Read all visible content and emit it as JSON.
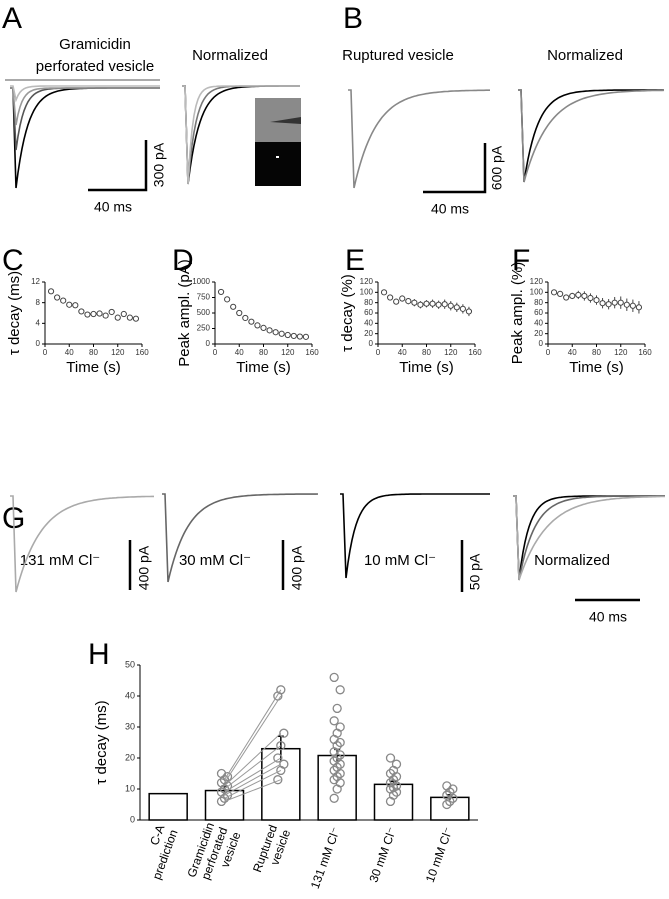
{
  "panels": {
    "A": {
      "letter": "A",
      "title": [
        "Gramicidin",
        "perforated vesicle"
      ],
      "normalized": "Normalized",
      "scale_y": "300 pA",
      "scale_x": "40 ms"
    },
    "B": {
      "letter": "B",
      "title": "Ruptured vesicle",
      "normalized": "Normalized",
      "scale_y": "600 pA",
      "scale_x": "40 ms"
    },
    "G": {
      "letter": "G",
      "titles": [
        "131 mM Cl⁻",
        "30 mM Cl⁻",
        "10 mM Cl⁻",
        "Normalized"
      ],
      "scale_y": [
        "400 pA",
        "400 pA",
        "50 pA"
      ],
      "scale_x": "40 ms"
    }
  },
  "chart_data": [
    {
      "type": "scatter",
      "panel": "C",
      "x_label": "Time (s)",
      "y_label": "τ decay (ms)",
      "x": [
        10,
        20,
        30,
        40,
        50,
        60,
        70,
        80,
        90,
        100,
        110,
        120,
        130,
        140,
        150
      ],
      "values": [
        10.2,
        9.0,
        8.4,
        7.6,
        7.5,
        6.3,
        5.7,
        5.8,
        5.9,
        5.5,
        6.2,
        5.1,
        5.8,
        5.1,
        4.9
      ],
      "xlim": [
        0,
        160
      ],
      "xticks": [
        0,
        40,
        80,
        120,
        160
      ],
      "ylim": [
        0,
        12
      ],
      "yticks": [
        0,
        4,
        8,
        12
      ]
    },
    {
      "type": "scatter",
      "panel": "D",
      "x_label": "Time (s)",
      "y_label": "Peak ampl. (pA)",
      "x": [
        10,
        20,
        30,
        40,
        50,
        60,
        70,
        80,
        90,
        100,
        110,
        120,
        130,
        140,
        150
      ],
      "values": [
        840,
        720,
        600,
        500,
        420,
        360,
        300,
        260,
        220,
        190,
        165,
        145,
        130,
        120,
        115
      ],
      "xlim": [
        0,
        160
      ],
      "xticks": [
        0,
        40,
        80,
        120,
        160
      ],
      "ylim": [
        0,
        1000
      ],
      "yticks": [
        0,
        250,
        500,
        750,
        1000
      ]
    },
    {
      "type": "scatter",
      "panel": "E",
      "x_label": "Time (s)",
      "y_label": "τ decay (%)",
      "x": [
        10,
        20,
        30,
        40,
        50,
        60,
        70,
        80,
        90,
        100,
        110,
        120,
        130,
        140,
        150
      ],
      "values": [
        100,
        90,
        82,
        88,
        83,
        80,
        76,
        78,
        78,
        76,
        77,
        74,
        71,
        68,
        63
      ],
      "errors": [
        2,
        4,
        5,
        6,
        6,
        7,
        7,
        7,
        8,
        8,
        9,
        9,
        9,
        9,
        9
      ],
      "xlim": [
        0,
        160
      ],
      "xticks": [
        0,
        40,
        80,
        120,
        160
      ],
      "ylim": [
        0,
        120
      ],
      "yticks": [
        0,
        20,
        40,
        60,
        80,
        100,
        120
      ]
    },
    {
      "type": "scatter",
      "panel": "F",
      "x_label": "Time (s)",
      "y_label": "Peak ampl. (%)",
      "x": [
        10,
        20,
        30,
        40,
        50,
        60,
        70,
        80,
        90,
        100,
        110,
        120,
        130,
        140,
        150
      ],
      "values": [
        100,
        97,
        90,
        93,
        95,
        93,
        89,
        85,
        79,
        77,
        80,
        80,
        76,
        74,
        71
      ],
      "errors": [
        2,
        3,
        5,
        6,
        8,
        9,
        9,
        9,
        10,
        10,
        11,
        12,
        12,
        12,
        12
      ],
      "xlim": [
        0,
        160
      ],
      "xticks": [
        0,
        40,
        80,
        120,
        160
      ],
      "ylim": [
        0,
        120
      ],
      "yticks": [
        0,
        20,
        40,
        60,
        80,
        100,
        120
      ]
    },
    {
      "type": "bar",
      "panel": "H",
      "y_label": "τ decay (ms)",
      "categories": [
        [
          "C-A",
          "prediction"
        ],
        [
          "Gramicidin",
          "perforated",
          "vesicle"
        ],
        [
          "Ruptured",
          "vesicle"
        ],
        [
          "131 mM Cl⁻"
        ],
        [
          "30 mM Cl⁻"
        ],
        [
          "10 mM Cl⁻"
        ]
      ],
      "values": [
        8.5,
        9.5,
        23,
        20.8,
        11.5,
        7.3
      ],
      "errors": [
        null,
        1.5,
        4,
        2,
        1,
        0.8
      ],
      "points": [
        [],
        [
          6,
          7,
          8,
          9,
          10,
          11,
          12,
          13,
          14,
          15
        ],
        [
          13,
          16,
          18,
          20,
          24,
          28,
          40,
          42
        ],
        [
          7,
          10,
          12,
          13,
          14,
          15,
          16,
          17,
          18,
          19,
          20,
          21,
          22,
          24,
          25,
          26,
          28,
          30,
          32,
          36,
          42,
          46
        ],
        [
          6,
          8,
          9,
          10,
          10.5,
          11,
          12,
          13,
          14,
          15,
          16,
          18,
          20
        ],
        [
          5,
          6,
          7,
          8,
          9,
          10,
          11
        ]
      ],
      "ylim": [
        0,
        50
      ],
      "yticks": [
        0,
        10,
        20,
        30,
        40,
        50
      ]
    }
  ]
}
